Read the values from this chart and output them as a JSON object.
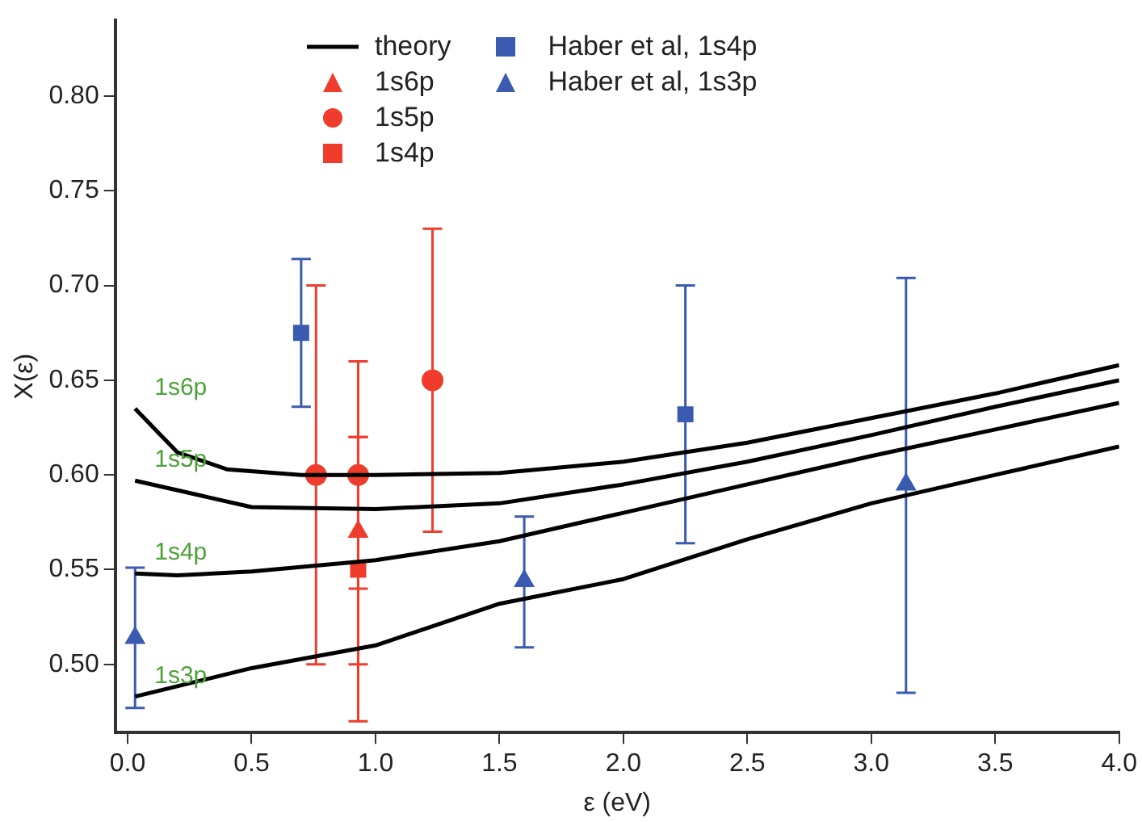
{
  "chart_data": {
    "type": "line",
    "xlabel": "ε (eV)",
    "ylabel": "X(ε)",
    "xlim": [
      -0.05,
      4.0
    ],
    "ylim": [
      0.464,
      0.84
    ],
    "xticks": [
      {
        "value": 0,
        "label": "0.0"
      },
      {
        "value": 0.5,
        "label": "0.5"
      },
      {
        "value": 1,
        "label": "1.0"
      },
      {
        "value": 1.5,
        "label": "1.5"
      },
      {
        "value": 2,
        "label": "2.0"
      },
      {
        "value": 2.5,
        "label": "2.5"
      },
      {
        "value": 3,
        "label": "3.0"
      },
      {
        "value": 3.5,
        "label": "3.5"
      },
      {
        "value": 4,
        "label": "4.0"
      }
    ],
    "yticks": [
      {
        "value": 0.5,
        "label": "0.50"
      },
      {
        "value": 0.55,
        "label": "0.55"
      },
      {
        "value": 0.6,
        "label": "0.60"
      },
      {
        "value": 0.65,
        "label": "0.65"
      },
      {
        "value": 0.7,
        "label": "0.70"
      },
      {
        "value": 0.75,
        "label": "0.75"
      },
      {
        "value": 0.8,
        "label": "0.80"
      }
    ],
    "grid": false,
    "legend": "top left",
    "series": [
      {
        "name": "theory",
        "color": "#000000",
        "marker": "none",
        "x": [
          0.03,
          0.2,
          0.4,
          0.7,
          1.0,
          1.5,
          2.0,
          2.5,
          3.0,
          3.5,
          4.0
        ],
        "values": [
          0.635,
          0.612,
          0.603,
          0.6,
          0.6,
          0.601,
          0.607,
          0.617,
          0.63,
          0.643,
          0.658
        ]
      },
      {
        "color": "#000000",
        "marker": "none",
        "x": [
          0.03,
          0.5,
          1.0,
          1.5,
          2.0,
          2.5,
          3.0,
          3.5,
          4.0
        ],
        "values": [
          0.597,
          0.583,
          0.582,
          0.585,
          0.595,
          0.607,
          0.621,
          0.636,
          0.65
        ]
      },
      {
        "color": "#000000",
        "marker": "none",
        "x": [
          0.03,
          0.2,
          0.5,
          1.0,
          1.5,
          2.0,
          2.5,
          3.0,
          3.5,
          4.0
        ],
        "values": [
          0.548,
          0.547,
          0.549,
          0.555,
          0.565,
          0.58,
          0.595,
          0.61,
          0.624,
          0.638
        ]
      },
      {
        "color": "#000000",
        "marker": "none",
        "x": [
          0.03,
          0.5,
          1.0,
          1.5,
          2.0,
          2.5,
          3.0,
          3.5,
          4.0
        ],
        "values": [
          0.483,
          0.498,
          0.51,
          0.532,
          0.545,
          0.566,
          0.585,
          0.6,
          0.615
        ]
      },
      {
        "name": "1s6p",
        "type": "scatter",
        "color": "#f03c2c",
        "marker": "triangle",
        "x": [
          0.93
        ],
        "values": [
          0.57
        ],
        "errors": [
          [
            0.5,
            0.62
          ]
        ]
      },
      {
        "name": "1s5p",
        "type": "scatter",
        "color": "#f03c2c",
        "marker": "circle",
        "x": [
          0.76,
          0.93,
          1.23
        ],
        "values": [
          0.6,
          0.6,
          0.65
        ],
        "errors": [
          [
            0.5,
            0.7
          ],
          [
            0.54,
            0.66
          ],
          [
            0.57,
            0.73
          ]
        ]
      },
      {
        "name": "1s4p",
        "type": "scatter",
        "color": "#f03c2c",
        "marker": "square",
        "x": [
          0.93
        ],
        "values": [
          0.55
        ],
        "errors": [
          [
            0.47,
            0.62
          ]
        ]
      },
      {
        "name": "Haber et al, 1s4p",
        "type": "scatter",
        "color": "#3a5bb0",
        "marker": "square",
        "x": [
          0.7,
          2.25
        ],
        "values": [
          0.675,
          0.632
        ],
        "errors": [
          [
            0.636,
            0.714
          ],
          [
            0.564,
            0.7
          ]
        ]
      },
      {
        "name": "Haber et al, 1s3p",
        "type": "scatter",
        "color": "#3a5bb0",
        "marker": "triangle",
        "x": [
          0.03,
          1.6,
          3.14
        ],
        "values": [
          0.514,
          0.544,
          0.595
        ],
        "errors": [
          [
            0.477,
            0.551
          ],
          [
            0.509,
            0.578
          ],
          [
            0.485,
            0.704
          ]
        ]
      }
    ],
    "annotations": [
      "1s6p",
      "1s5p",
      "1s4p",
      "1s3p"
    ]
  }
}
